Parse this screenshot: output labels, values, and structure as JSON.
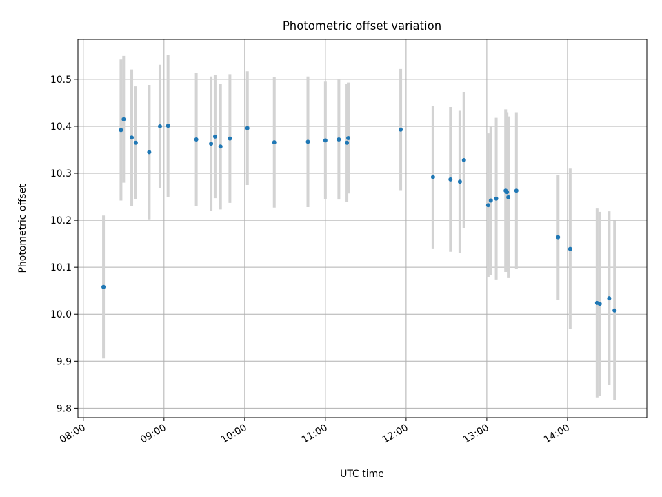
{
  "chart_data": {
    "type": "scatter",
    "title": "Photometric offset variation",
    "xlabel": "UTC time",
    "ylabel": "Photometric offset",
    "xlim": [
      "07:56",
      "14:59"
    ],
    "ylim": [
      9.78,
      10.585
    ],
    "x_ticks": [
      "08:00",
      "09:00",
      "10:00",
      "11:00",
      "12:00",
      "13:00",
      "14:00"
    ],
    "y_ticks": [
      "9.8",
      "9.9",
      "10.0",
      "10.1",
      "10.2",
      "10.3",
      "10.4",
      "10.5"
    ],
    "grid": true,
    "colors": {
      "points": "#1f77b4",
      "errorbars": "#d3d3d3",
      "grid": "#b0b0b0"
    },
    "points": [
      {
        "x": "08:15",
        "y": 10.058,
        "err": 0.152
      },
      {
        "x": "08:28",
        "y": 10.392,
        "err": 0.15
      },
      {
        "x": "08:30",
        "y": 10.415,
        "err": 0.135
      },
      {
        "x": "08:36",
        "y": 10.376,
        "err": 0.145
      },
      {
        "x": "08:39",
        "y": 10.365,
        "err": 0.12
      },
      {
        "x": "08:49",
        "y": 10.345,
        "err": 0.143
      },
      {
        "x": "08:57",
        "y": 10.4,
        "err": 0.131
      },
      {
        "x": "09:03",
        "y": 10.401,
        "err": 0.151
      },
      {
        "x": "09:24",
        "y": 10.372,
        "err": 0.141
      },
      {
        "x": "09:35",
        "y": 10.363,
        "err": 0.143
      },
      {
        "x": "09:38",
        "y": 10.378,
        "err": 0.131
      },
      {
        "x": "09:42",
        "y": 10.357,
        "err": 0.134
      },
      {
        "x": "09:49",
        "y": 10.374,
        "err": 0.137
      },
      {
        "x": "10:02",
        "y": 10.396,
        "err": 0.121
      },
      {
        "x": "10:22",
        "y": 10.366,
        "err": 0.139
      },
      {
        "x": "10:47",
        "y": 10.367,
        "err": 0.139
      },
      {
        "x": "11:00",
        "y": 10.37,
        "err": 0.125
      },
      {
        "x": "11:10",
        "y": 10.372,
        "err": 0.128
      },
      {
        "x": "11:16",
        "y": 10.365,
        "err": 0.126
      },
      {
        "x": "11:17",
        "y": 10.375,
        "err": 0.118
      },
      {
        "x": "11:56",
        "y": 10.393,
        "err": 0.129
      },
      {
        "x": "12:20",
        "y": 10.292,
        "err": 0.152
      },
      {
        "x": "12:33",
        "y": 10.287,
        "err": 0.154
      },
      {
        "x": "12:40",
        "y": 10.282,
        "err": 0.151
      },
      {
        "x": "12:43",
        "y": 10.328,
        "err": 0.144
      },
      {
        "x": "13:01",
        "y": 10.232,
        "err": 0.153
      },
      {
        "x": "13:03",
        "y": 10.242,
        "err": 0.159
      },
      {
        "x": "13:07",
        "y": 10.246,
        "err": 0.172
      },
      {
        "x": "13:14",
        "y": 10.263,
        "err": 0.173
      },
      {
        "x": "13:15",
        "y": 10.26,
        "err": 0.17
      },
      {
        "x": "13:16",
        "y": 10.249,
        "err": 0.172
      },
      {
        "x": "13:22",
        "y": 10.263,
        "err": 0.167
      },
      {
        "x": "13:53",
        "y": 10.164,
        "err": 0.133
      },
      {
        "x": "14:02",
        "y": 10.139,
        "err": 0.171
      },
      {
        "x": "14:22",
        "y": 10.024,
        "err": 0.201
      },
      {
        "x": "14:24",
        "y": 10.022,
        "err": 0.196
      },
      {
        "x": "14:31",
        "y": 10.034,
        "err": 0.185
      },
      {
        "x": "14:35",
        "y": 10.008,
        "err": 0.191
      }
    ]
  }
}
